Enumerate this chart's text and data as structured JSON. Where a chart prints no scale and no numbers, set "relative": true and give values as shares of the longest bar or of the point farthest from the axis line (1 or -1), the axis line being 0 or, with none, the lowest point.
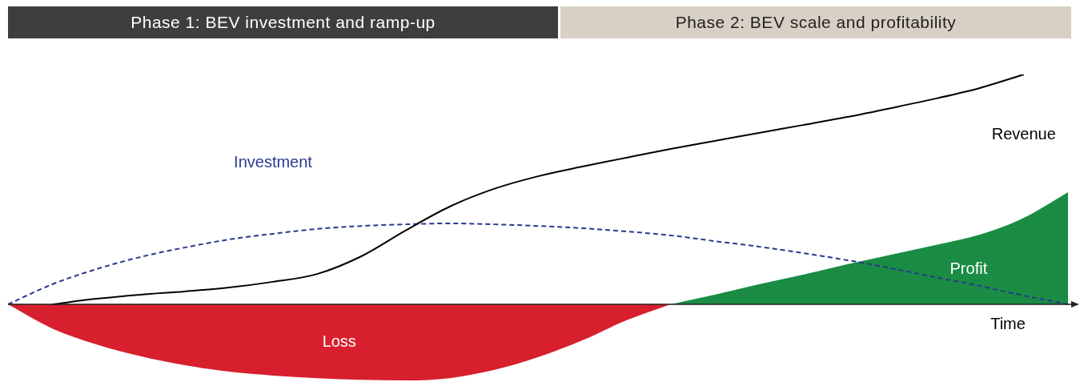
{
  "chart_data": {
    "type": "area",
    "relative": true,
    "xlabel": "Time",
    "legend": false,
    "grid": false,
    "tick_labels": false,
    "marker": "none",
    "annotations": [
      "Phase 1: BEV investment and ramp-up",
      "Phase 2: BEV scale and profitability"
    ],
    "categories": [
      null,
      null,
      null,
      null,
      null,
      null,
      null,
      null,
      null,
      null,
      null,
      null,
      null,
      null,
      null,
      null,
      null,
      null,
      null,
      null,
      null,
      null,
      null,
      null,
      null
    ],
    "series": [
      {
        "name": "Revenue",
        "type": "line",
        "color": "#000000",
        "line_style": "solid",
        "values": [
          null,
          0,
          0.024,
          0.042,
          0.056,
          0.073,
          0.098,
          0.132,
          0.209,
          0.321,
          0.425,
          0.502,
          0.557,
          0.599,
          0.638,
          0.676,
          0.711,
          0.746,
          0.78,
          0.815,
          0.854,
          0.895,
          0.941,
          1,
          null
        ]
      },
      {
        "name": "Investment",
        "type": "line",
        "color": "#2b3990",
        "line_style": "dashed",
        "values": [
          0,
          0.087,
          0.153,
          0.206,
          0.247,
          0.282,
          0.307,
          0.328,
          0.341,
          0.348,
          0.352,
          0.348,
          0.341,
          0.331,
          0.317,
          0.3,
          0.275,
          0.251,
          0.223,
          0.192,
          0.157,
          0.118,
          0.08,
          0.038,
          0
        ]
      },
      {
        "name": "Profit",
        "color": "#1a8c44",
        "values": [
          null,
          null,
          null,
          null,
          null,
          null,
          null,
          null,
          null,
          null,
          null,
          null,
          null,
          null,
          null,
          0,
          0.042,
          0.087,
          0.129,
          0.174,
          0.216,
          0.258,
          0.303,
          0.376,
          0.488
        ]
      },
      {
        "name": "Loss",
        "color": "#d71f2d",
        "values": [
          0,
          -0.105,
          -0.174,
          -0.226,
          -0.265,
          -0.293,
          -0.31,
          -0.321,
          -0.328,
          -0.331,
          -0.321,
          -0.286,
          -0.23,
          -0.157,
          -0.07,
          0,
          null,
          null,
          null,
          null,
          null,
          null,
          null,
          null,
          null
        ]
      }
    ]
  }
}
